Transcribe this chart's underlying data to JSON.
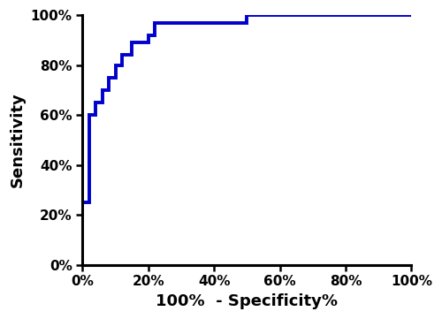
{
  "roc_x": [
    0.0,
    0.0,
    0.02,
    0.02,
    0.04,
    0.04,
    0.06,
    0.06,
    0.08,
    0.08,
    0.1,
    0.1,
    0.12,
    0.12,
    0.15,
    0.15,
    0.2,
    0.2,
    0.22,
    0.22,
    0.5,
    0.5,
    1.0
  ],
  "roc_y": [
    0.0,
    0.25,
    0.25,
    0.6,
    0.6,
    0.65,
    0.65,
    0.7,
    0.7,
    0.75,
    0.75,
    0.8,
    0.8,
    0.84,
    0.84,
    0.89,
    0.89,
    0.92,
    0.92,
    0.97,
    0.97,
    1.0,
    1.0
  ],
  "line_color": "#0000CC",
  "line_width": 2.8,
  "xlabel": "100%  - Specificity%",
  "ylabel": "Sensitivity",
  "xlim": [
    0.0,
    1.0
  ],
  "ylim": [
    0.0,
    1.0
  ],
  "xticks": [
    0.0,
    0.2,
    0.4,
    0.6,
    0.8,
    1.0
  ],
  "yticks": [
    0.0,
    0.2,
    0.4,
    0.6,
    0.8,
    1.0
  ],
  "xtick_labels": [
    "0%",
    "20%",
    "40%",
    "60%",
    "80%",
    "100%"
  ],
  "ytick_labels": [
    "0%",
    "20%",
    "40%",
    "60%",
    "80%",
    "100%"
  ],
  "bg_color": "#ffffff",
  "axes_linewidth": 2.2,
  "xlabel_fontsize": 13,
  "ylabel_fontsize": 13,
  "tick_fontsize": 11,
  "xlabel_fontweight": "bold",
  "ylabel_fontweight": "bold",
  "tick_fontweight": "bold",
  "figsize": [
    5.0,
    3.61
  ],
  "dpi": 100
}
